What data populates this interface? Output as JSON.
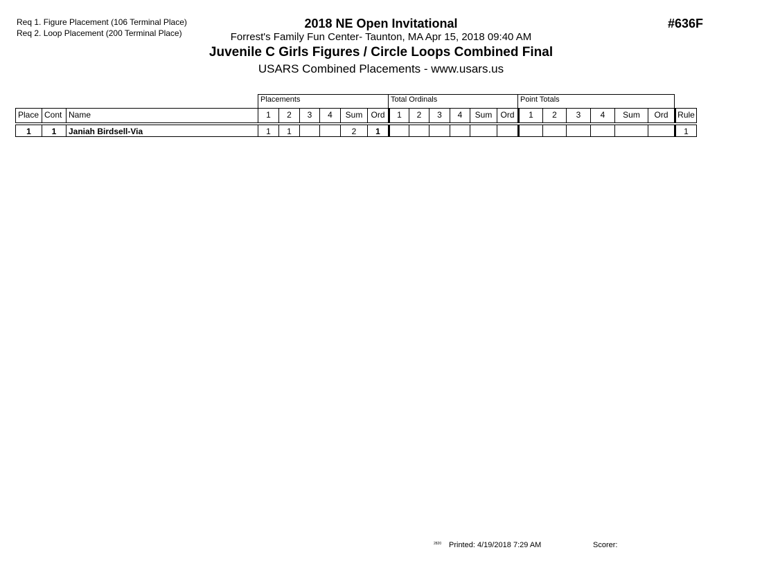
{
  "header": {
    "requirements": [
      "Req  1.  Figure Placement (106 Terminal Place)",
      "Req  2.  Loop Placement (200 Terminal Place)"
    ],
    "event_title": "2018 NE Open Invitational",
    "location": "Forrest's Family Fun Center- Taunton, MA  Apr 15, 2018  09:40 AM",
    "event_name": "Juvenile C Girls Figures / Circle Loops Combined Final",
    "subtitle": "USARS Combined Placements - www.usars.us",
    "event_number": "#636F"
  },
  "table": {
    "groups": [
      "Placements",
      "Total Ordinals",
      "Point Totals"
    ],
    "columns": [
      "Place",
      "Cont",
      "Name",
      "1",
      "2",
      "3",
      "4",
      "Sum",
      "Ord",
      "1",
      "2",
      "3",
      "4",
      "Sum",
      "Ord",
      "1",
      "2",
      "3",
      "4",
      "Sum",
      "Ord",
      "Rule"
    ],
    "rows": [
      [
        "1",
        "1",
        "Janiah Birdsell-Via",
        "1",
        "1",
        "",
        "",
        "2",
        "1",
        "",
        "",
        "",
        "",
        "",
        "",
        "",
        "",
        "",
        "",
        "",
        "",
        "1"
      ]
    ]
  },
  "footer": {
    "code": "2820",
    "printed": "Printed:  4/19/2018  7:29 AM",
    "scorer": "Scorer:"
  }
}
